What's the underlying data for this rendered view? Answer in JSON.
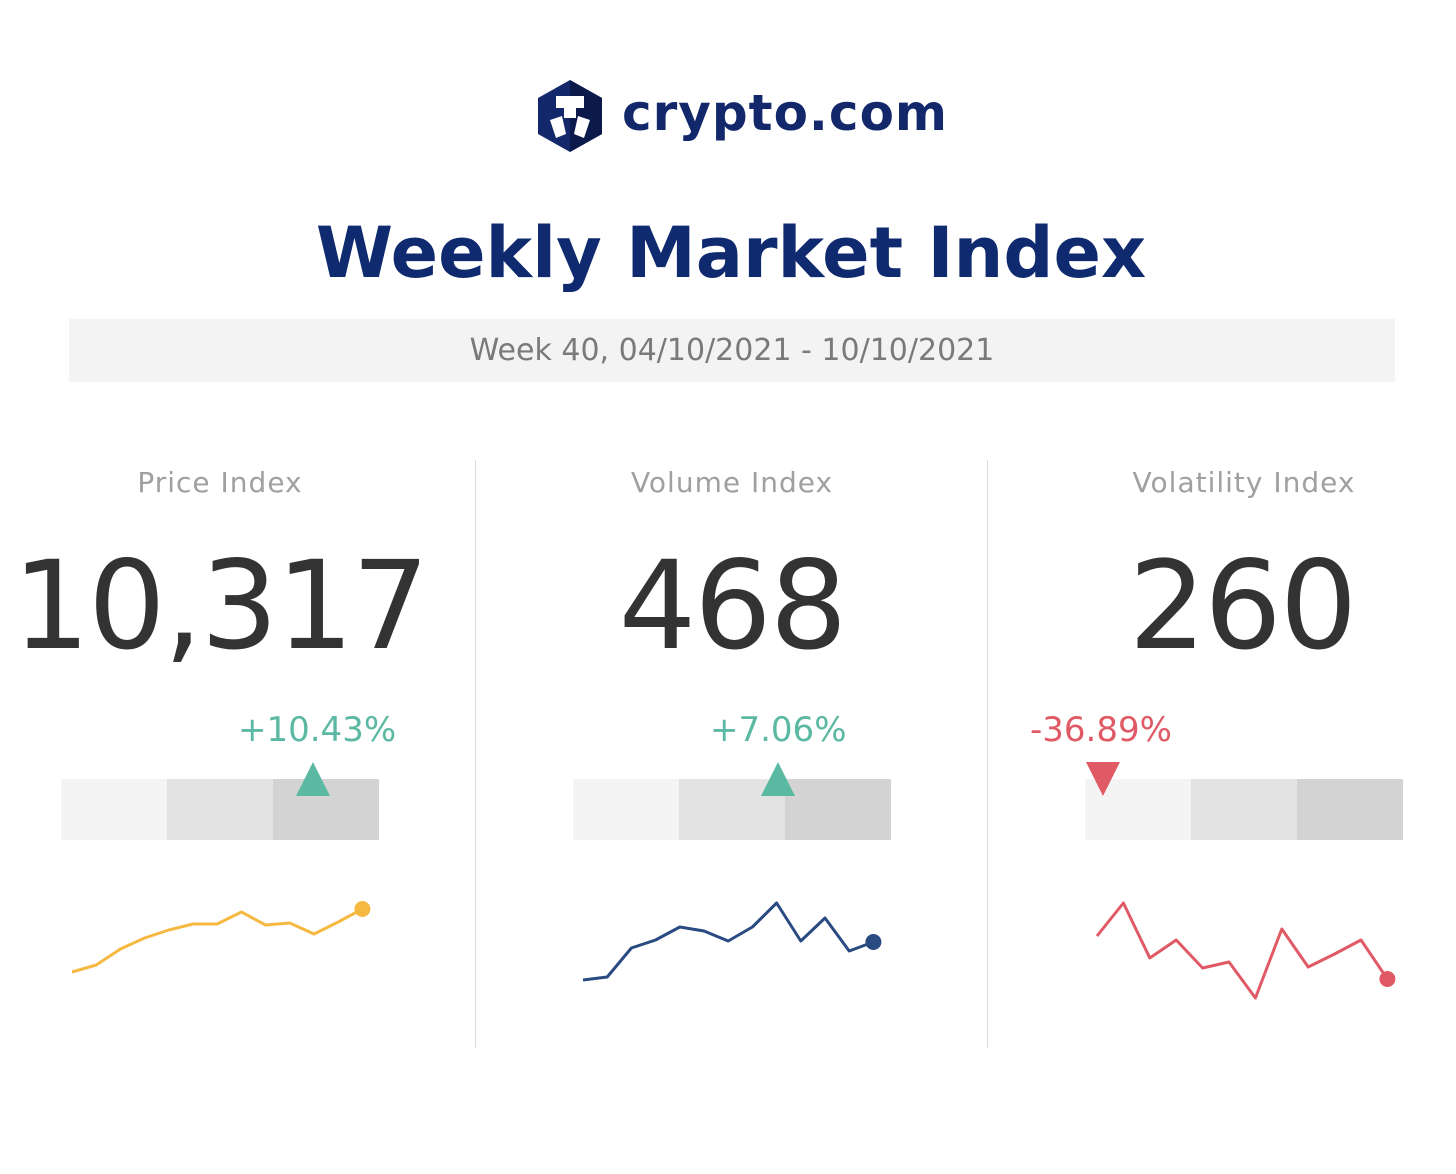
{
  "brand": {
    "name": "crypto.com"
  },
  "header": {
    "title": "Weekly Market Index",
    "week": "Week 40, 04/10/2021 - 10/10/2021"
  },
  "colors": {
    "brand": "#13286b",
    "up": "#5bb8a2",
    "down": "#e05a66",
    "price_line": "#f5b942",
    "volume_line": "#2a4a82",
    "volatility_line": "#e05a66"
  },
  "panels": [
    {
      "label": "Price Index",
      "value": "10,317",
      "change": "+10.43%",
      "direction": "up",
      "level_segment": 3
    },
    {
      "label": "Volume Index",
      "value": "468",
      "change": "+7.06%",
      "direction": "up",
      "level_segment": 2
    },
    {
      "label": "Volatility Index",
      "value": "260",
      "change": "-36.89%",
      "direction": "down",
      "level_segment": 1
    }
  ],
  "chart_data": [
    {
      "type": "line",
      "title": "Price Index",
      "values": [
        38,
        45,
        61,
        72,
        80,
        86,
        86,
        98,
        85,
        87,
        76,
        88,
        101
      ]
    },
    {
      "type": "line",
      "title": "Volume Index",
      "values": [
        30,
        33,
        62,
        70,
        83,
        79,
        69,
        83,
        107,
        69,
        92,
        59,
        68
      ]
    },
    {
      "type": "line",
      "title": "Volatility Index",
      "values": [
        74,
        107,
        52,
        70,
        42,
        48,
        12,
        81,
        43,
        56,
        70,
        31
      ]
    }
  ]
}
